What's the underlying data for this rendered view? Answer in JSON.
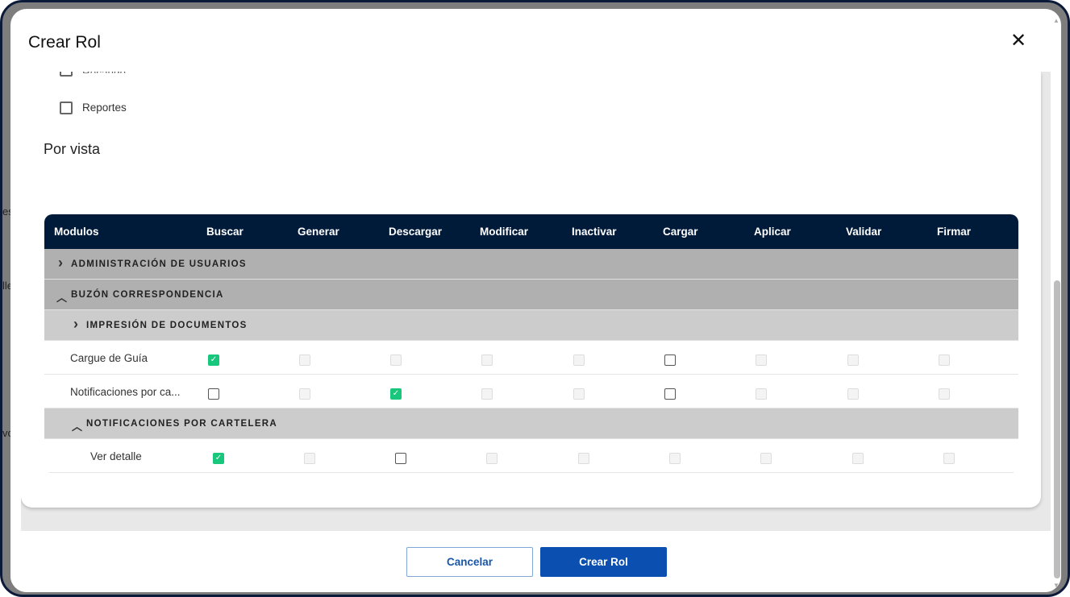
{
  "dialog": {
    "title": "Crear Rol",
    "close_icon": "close-icon"
  },
  "modules_checklist": [
    {
      "label": "Recaudo",
      "checked": false
    },
    {
      "label": "Reportes",
      "checked": false
    }
  ],
  "section_title": "Por vista",
  "table": {
    "columns": [
      "Modulos",
      "Buscar",
      "Generar",
      "Descargar",
      "Modificar",
      "Inactivar",
      "Cargar",
      "Aplicar",
      "Validar",
      "Firmar"
    ],
    "rows": [
      {
        "type": "group",
        "level": 0,
        "expanded": false,
        "label": "ADMINISTRACIÓN DE USUARIOS"
      },
      {
        "type": "group",
        "level": 0,
        "expanded": true,
        "label": "BUZÓN CORRESPONDENCIA"
      },
      {
        "type": "subgroup",
        "level": 1,
        "expanded": false,
        "label": "IMPRESIÓN DE DOCUMENTOS"
      },
      {
        "type": "item",
        "level": 1,
        "label": "Cargue de Guía",
        "states": [
          "on",
          "dis",
          "dis",
          "dis",
          "dis",
          "off",
          "dis",
          "dis",
          "dis"
        ]
      },
      {
        "type": "item",
        "level": 1,
        "label": "Notificaciones por ca...",
        "states": [
          "off",
          "dis",
          "on",
          "dis",
          "dis",
          "off",
          "dis",
          "dis",
          "dis"
        ]
      },
      {
        "type": "subgroup",
        "level": 1,
        "expanded": true,
        "label": "NOTIFICACIONES POR CARTELERA"
      },
      {
        "type": "item",
        "level": 2,
        "label": "Ver detalle",
        "states": [
          "on",
          "dis",
          "off",
          "dis",
          "dis",
          "dis",
          "dis",
          "dis",
          "dis"
        ]
      }
    ]
  },
  "footer": {
    "cancel_label": "Cancelar",
    "create_label": "Crear Rol"
  },
  "colors": {
    "header": "#001a3a",
    "group": "#b0b0b0",
    "subgroup": "#cccccc",
    "checked": "#17c77b",
    "primary": "#0b4fb0"
  }
}
